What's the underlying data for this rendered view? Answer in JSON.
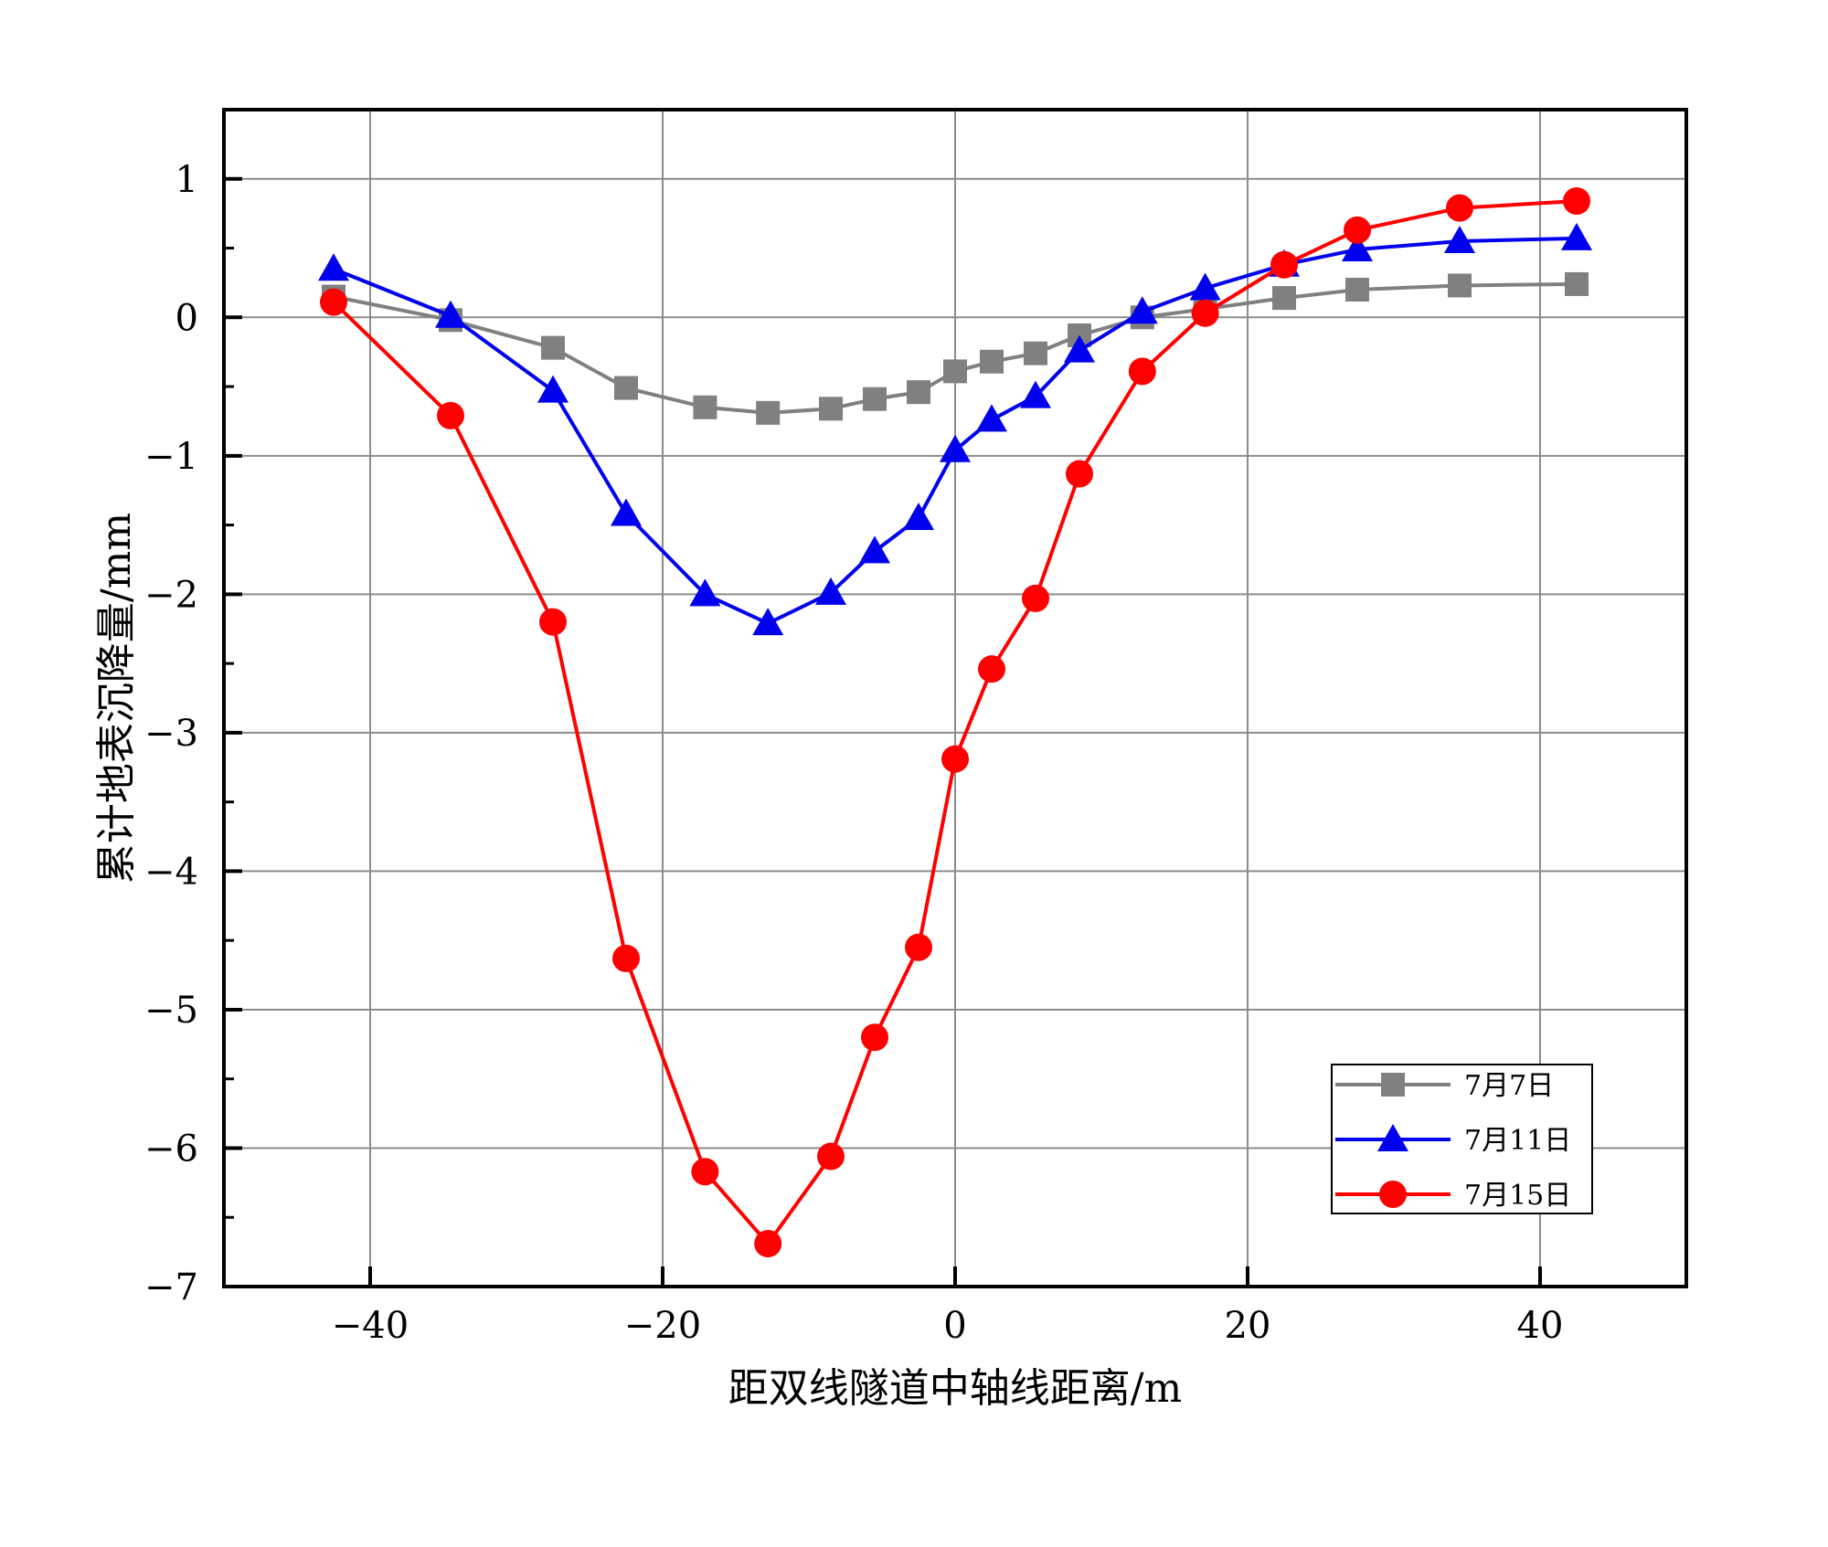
{
  "chart_data": {
    "type": "line",
    "title": "",
    "xlabel": "距双线隧道中轴线距离/m",
    "ylabel": "累计地表沉降量/mm",
    "xlim": [
      -50,
      50
    ],
    "ylim": [
      -7,
      1.5
    ],
    "xticks": [
      -40,
      -20,
      0,
      20,
      40
    ],
    "xtick_labels": [
      "−40",
      "−20",
      "0",
      "20",
      "40"
    ],
    "yticks": [
      1,
      0,
      -1,
      -2,
      -3,
      -4,
      -5,
      -6,
      -7
    ],
    "ytick_labels": [
      "1",
      "0",
      "−1",
      "−2",
      "−3",
      "−4",
      "−5",
      "−6",
      "−7"
    ],
    "grid": true,
    "legend_position": "bottom-right",
    "series": [
      {
        "name": "7月7日",
        "color": "#808080",
        "marker": "square",
        "x": [
          -42.5,
          -34.5,
          -27.5,
          -22.5,
          -17.1,
          -12.8,
          -8.5,
          -5.5,
          -2.5,
          0,
          2.5,
          5.5,
          8.5,
          12.8,
          17.1,
          22.5,
          27.5,
          34.5,
          42.5
        ],
        "y": [
          0.15,
          -0.02,
          -0.22,
          -0.51,
          -0.65,
          -0.69,
          -0.66,
          -0.59,
          -0.54,
          -0.39,
          -0.32,
          -0.26,
          -0.13,
          0.0,
          0.06,
          0.14,
          0.2,
          0.23,
          0.24
        ]
      },
      {
        "name": "7月11日",
        "color": "#0000ee",
        "marker": "triangle",
        "x": [
          -42.5,
          -34.5,
          -27.5,
          -22.5,
          -17.1,
          -12.8,
          -8.5,
          -5.5,
          -2.5,
          0,
          2.5,
          5.5,
          8.5,
          12.8,
          17.1,
          22.5,
          27.5,
          34.5,
          42.5
        ],
        "y": [
          0.35,
          0.01,
          -0.53,
          -1.42,
          -2.0,
          -2.21,
          -1.99,
          -1.69,
          -1.45,
          -0.96,
          -0.74,
          -0.57,
          -0.24,
          0.04,
          0.21,
          0.38,
          0.49,
          0.55,
          0.57
        ]
      },
      {
        "name": "7月15日",
        "color": "#ff0000",
        "marker": "circle",
        "x": [
          -42.5,
          -34.5,
          -27.5,
          -22.5,
          -17.1,
          -12.8,
          -8.5,
          -5.5,
          -2.5,
          0,
          2.5,
          5.5,
          8.5,
          12.8,
          17.1,
          22.5,
          27.5,
          34.5,
          42.5
        ],
        "y": [
          0.11,
          -0.71,
          -2.2,
          -4.63,
          -6.17,
          -6.69,
          -6.06,
          -5.2,
          -4.55,
          -3.19,
          -2.54,
          -2.03,
          -1.13,
          -0.39,
          0.03,
          0.38,
          0.63,
          0.79,
          0.84
        ]
      }
    ]
  }
}
